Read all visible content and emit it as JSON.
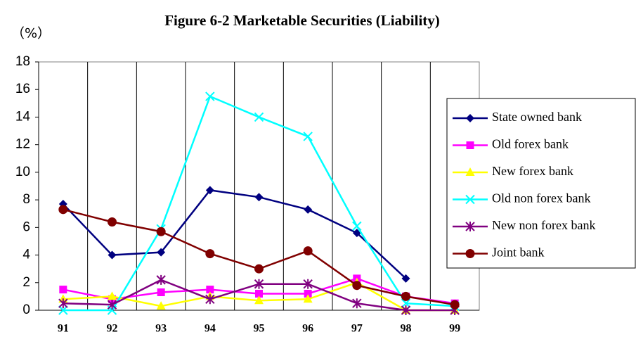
{
  "chart_data": {
    "type": "line",
    "title": "Figure 6-2 Marketable Securities (Liability)",
    "y_label": "（%）",
    "categories": [
      "91",
      "92",
      "93",
      "94",
      "95",
      "96",
      "97",
      "98",
      "99"
    ],
    "ylim": [
      0,
      18
    ],
    "yticks": [
      0,
      2,
      4,
      6,
      8,
      10,
      12,
      14,
      16,
      18
    ],
    "grid": "vertical-boundaries",
    "legend": "right",
    "series": [
      {
        "name": "State owned bank",
        "color": "#000080",
        "marker": "diamond",
        "values": [
          7.7,
          4.0,
          4.2,
          8.7,
          8.2,
          7.3,
          5.6,
          2.3,
          null
        ]
      },
      {
        "name": "Old forex bank",
        "color": "#ff00ff",
        "marker": "square",
        "values": [
          1.5,
          0.8,
          1.3,
          1.5,
          1.2,
          1.2,
          2.3,
          1.0,
          0.5
        ]
      },
      {
        "name": "New forex bank",
        "color": "#ffff00",
        "marker": "triangle",
        "values": [
          0.8,
          1.0,
          0.3,
          1.0,
          0.7,
          0.8,
          2.0,
          0.0,
          0.0
        ]
      },
      {
        "name": "Old non forex bank",
        "color": "#00ffff",
        "marker": "x",
        "values": [
          0.0,
          0.0,
          5.9,
          15.5,
          14.0,
          12.6,
          6.1,
          0.5,
          0.3
        ]
      },
      {
        "name": "New non forex bank",
        "color": "#800080",
        "marker": "star",
        "values": [
          0.5,
          0.4,
          2.2,
          0.8,
          1.9,
          1.9,
          0.5,
          0.0,
          0.0
        ]
      },
      {
        "name": "Joint bank",
        "color": "#800000",
        "marker": "circle",
        "values": [
          7.3,
          6.4,
          5.7,
          4.1,
          3.0,
          4.3,
          1.8,
          1.0,
          0.4
        ]
      }
    ]
  }
}
